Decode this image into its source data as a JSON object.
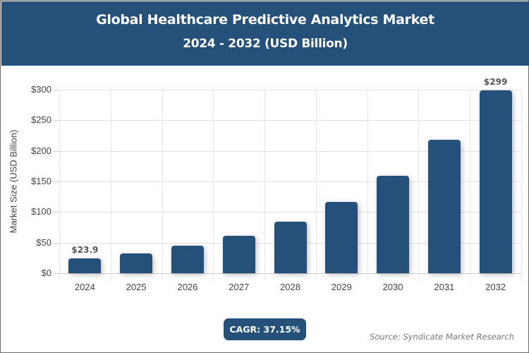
{
  "header": {
    "title": "Global Healthcare Predictive Analytics Market",
    "subtitle": "2024 - 2032 (USD Billion)"
  },
  "colors": {
    "bar": "#24507a",
    "header_bg": "#24507a",
    "grid": "#e2e2e2"
  },
  "axis": {
    "ylabel": "Market Size (USD Billion)",
    "yticks": [
      "$0",
      "$50",
      "$100",
      "$150",
      "$200",
      "$250",
      "$300"
    ]
  },
  "labels": {
    "first": "$23.9",
    "last": "$299"
  },
  "cagr": "CAGR: 37.15%",
  "source": "Source: Syndicate Market Research",
  "chart_data": {
    "type": "bar",
    "title": "Global Healthcare Predictive Analytics Market",
    "subtitle": "2024 - 2032 (USD Billion)",
    "categories": [
      "2024",
      "2025",
      "2026",
      "2027",
      "2028",
      "2029",
      "2030",
      "2031",
      "2032"
    ],
    "values": [
      23.9,
      32.8,
      45.0,
      61.7,
      84.6,
      116.1,
      159.2,
      218.3,
      299.0
    ],
    "xlabel": "",
    "ylabel": "Market Size (USD Billion)",
    "ylim": [
      0,
      300
    ],
    "yticks": [
      0,
      50,
      100,
      150,
      200,
      250,
      300
    ],
    "ytick_format": "$",
    "grid": true,
    "legend": null,
    "data_labels": [
      {
        "category": "2024",
        "text": "$23.9"
      },
      {
        "category": "2032",
        "text": "$299"
      }
    ],
    "annotations": [
      "CAGR: 37.15%",
      "Source: Syndicate Market Research"
    ]
  }
}
